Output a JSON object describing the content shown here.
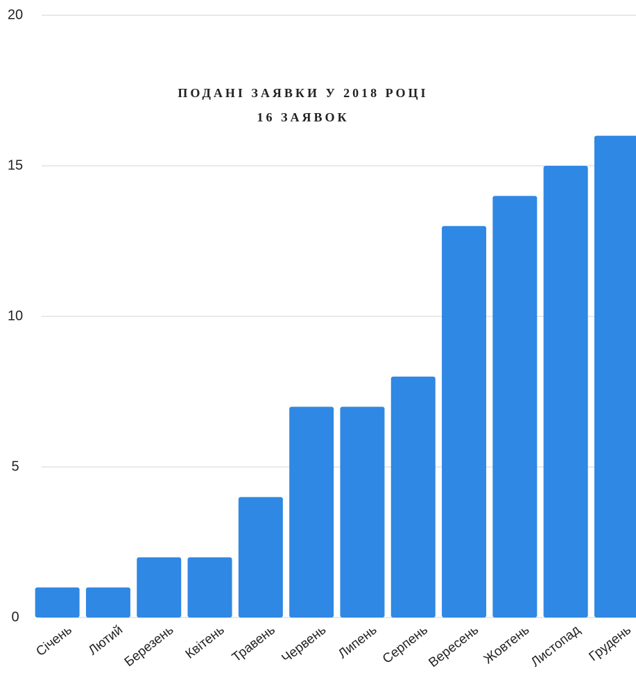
{
  "chart_data": {
    "type": "bar",
    "title": "ПОДАНІ ЗАЯВКИ У 2018 РОЦІ",
    "subtitle": "16 ЗАЯВОК",
    "categories": [
      "Січень",
      "Лютий",
      "Березень",
      "Квітень",
      "Травень",
      "Червень",
      "Липень",
      "Серпень",
      "Вересень",
      "Жовтень",
      "Листопад",
      "Грудень"
    ],
    "values": [
      1,
      1,
      2,
      2,
      4,
      7,
      7,
      8,
      13,
      14,
      15,
      16
    ],
    "color": "#2f88e3",
    "ylim": [
      0,
      20
    ],
    "yticks": [
      0,
      5,
      10,
      15,
      20
    ],
    "grid": true
  }
}
